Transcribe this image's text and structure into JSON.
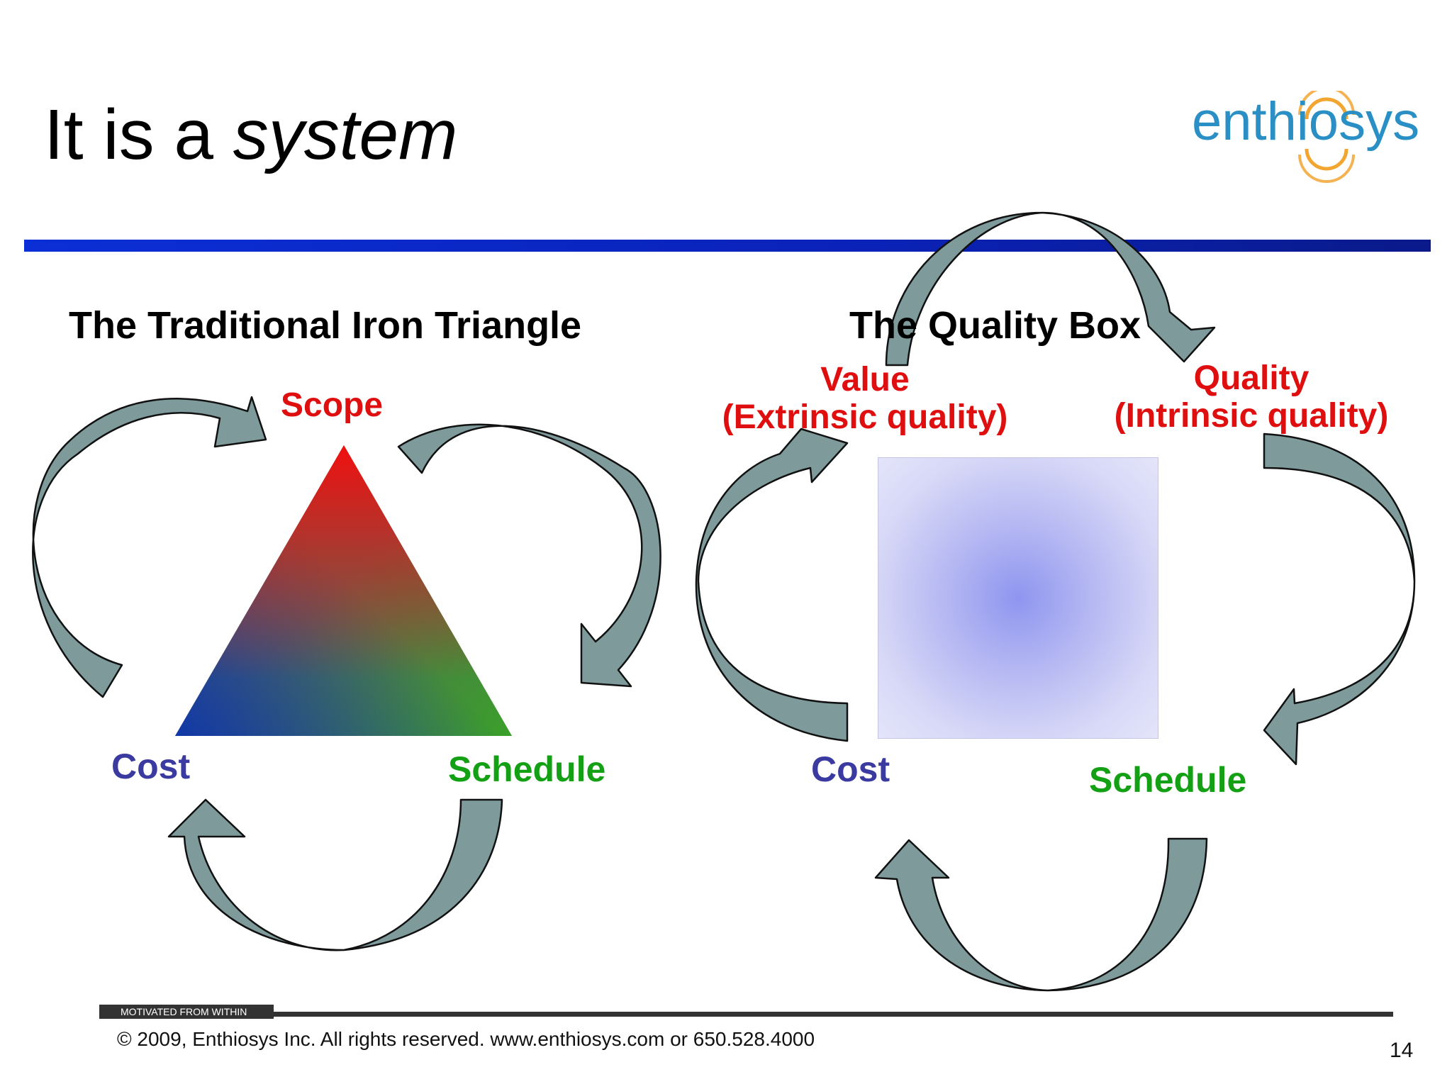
{
  "slide": {
    "title_plain": "It is a ",
    "title_italic": "system",
    "logo_text": "enthiosys",
    "page_number": "14"
  },
  "left_diagram": {
    "heading": "The Traditional Iron Triangle",
    "top_label": "Scope",
    "left_label": "Cost",
    "right_label": "Schedule"
  },
  "right_diagram": {
    "heading": "The Quality Box",
    "value_label": "Value",
    "value_sub": "(Extrinsic quality)",
    "quality_label": "Quality",
    "quality_sub": "(Intrinsic quality)",
    "left_label": "Cost",
    "right_label": "Schedule"
  },
  "footer": {
    "tagline": "MOTIVATED FROM WITHIN",
    "copyright": "© 2009, Enthiosys Inc.    All rights reserved. www.enthiosys.com or 650.528.4000"
  },
  "colors": {
    "blue_rule": "#0b2fd6",
    "arrow_fill": "#7f9a9a",
    "label_red": "#e00f0f",
    "label_blue": "#3a3aa0",
    "label_green": "#14a014",
    "logo_blue": "#2a8fc5",
    "logo_orange": "#f2a531"
  }
}
